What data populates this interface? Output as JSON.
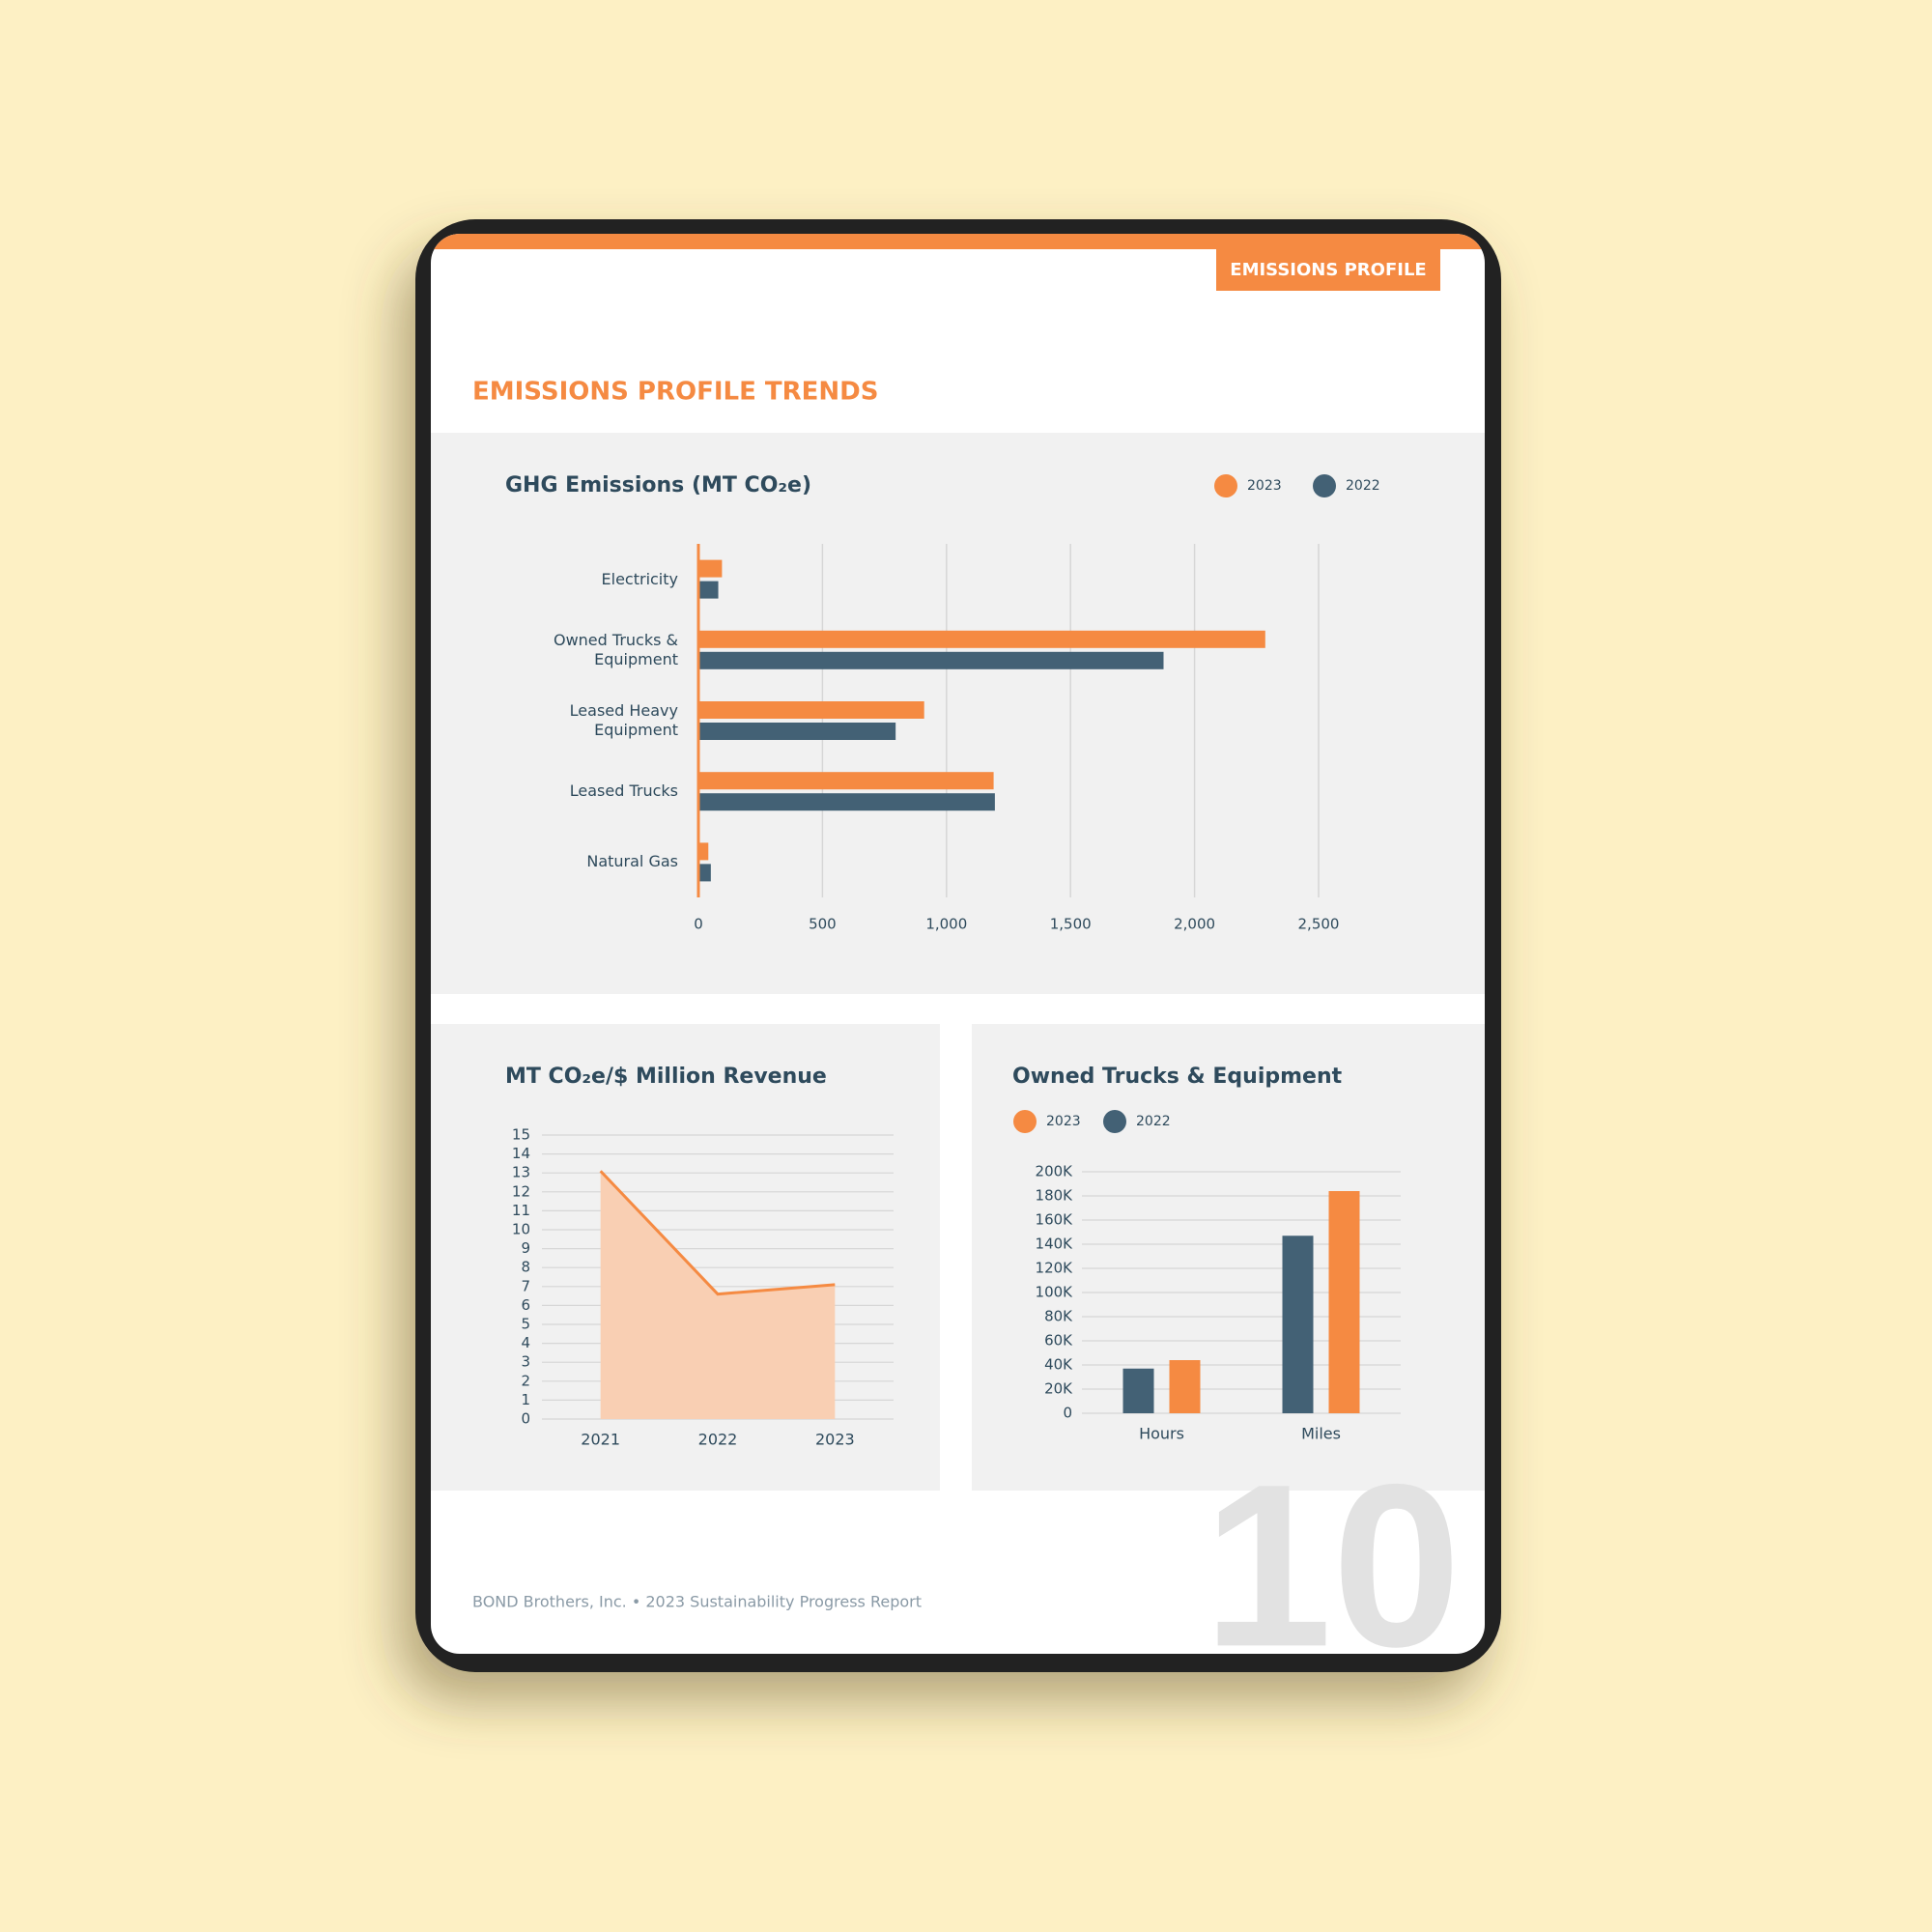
{
  "header": {
    "tab": "EMISSIONS PROFILE",
    "title": "EMISSIONS PROFILE TRENDS"
  },
  "chart_data": [
    {
      "type": "bar",
      "orientation": "horizontal",
      "title": "GHG Emissions (MT CO₂e)",
      "categories": [
        "Electricity",
        "Owned Trucks & Equipment",
        "Leased Heavy Equipment",
        "Leased Trucks",
        "Natural Gas"
      ],
      "series": [
        {
          "name": "2023",
          "color": "#f58a42",
          "values": [
            95,
            2285,
            910,
            1190,
            40
          ]
        },
        {
          "name": "2022",
          "color": "#436175",
          "values": [
            80,
            1875,
            795,
            1195,
            50
          ]
        }
      ],
      "xlim": [
        0,
        2500
      ],
      "xticks": [
        0,
        500,
        {
          "value": 1000,
          "label": "1,000"
        },
        {
          "value": 1500,
          "label": "1,500"
        },
        {
          "value": 2000,
          "label": "2,000"
        },
        {
          "value": 2500,
          "label": "2,500"
        }
      ],
      "grid": true
    },
    {
      "type": "area",
      "title": "MT CO₂e/$ Million Revenue",
      "categories": [
        "2021",
        "2022",
        "2023"
      ],
      "values": [
        13.1,
        6.6,
        7.1
      ],
      "color": "#f58a42",
      "fill": "#f9cfb3",
      "ylim": [
        0,
        15
      ],
      "yticks": [
        0,
        1,
        2,
        3,
        4,
        5,
        6,
        7,
        8,
        9,
        10,
        11,
        12,
        13,
        14,
        15
      ],
      "grid": true
    },
    {
      "type": "bar",
      "orientation": "vertical",
      "title": "Owned Trucks & Equipment",
      "categories": [
        "Hours",
        "Miles"
      ],
      "series": [
        {
          "name": "2023",
          "color": "#f58a42",
          "values": [
            44000,
            184000
          ]
        },
        {
          "name": "2022",
          "color": "#436175",
          "values": [
            37000,
            147000
          ]
        }
      ],
      "ylim": [
        0,
        200000
      ],
      "yticks": [
        0,
        {
          "value": 20000,
          "label": "20K"
        },
        {
          "value": 40000,
          "label": "40K"
        },
        {
          "value": 60000,
          "label": "60K"
        },
        {
          "value": 80000,
          "label": "80K"
        },
        {
          "value": 100000,
          "label": "100K"
        },
        {
          "value": 120000,
          "label": "120K"
        },
        {
          "value": 140000,
          "label": "140K"
        },
        {
          "value": 160000,
          "label": "160K"
        },
        {
          "value": 180000,
          "label": "180K"
        },
        {
          "value": 200000,
          "label": "200K"
        }
      ],
      "grid": true
    }
  ],
  "footer": {
    "text": "BOND Brothers, Inc. • 2023 Sustainability Progress Report",
    "page_number": "10"
  }
}
